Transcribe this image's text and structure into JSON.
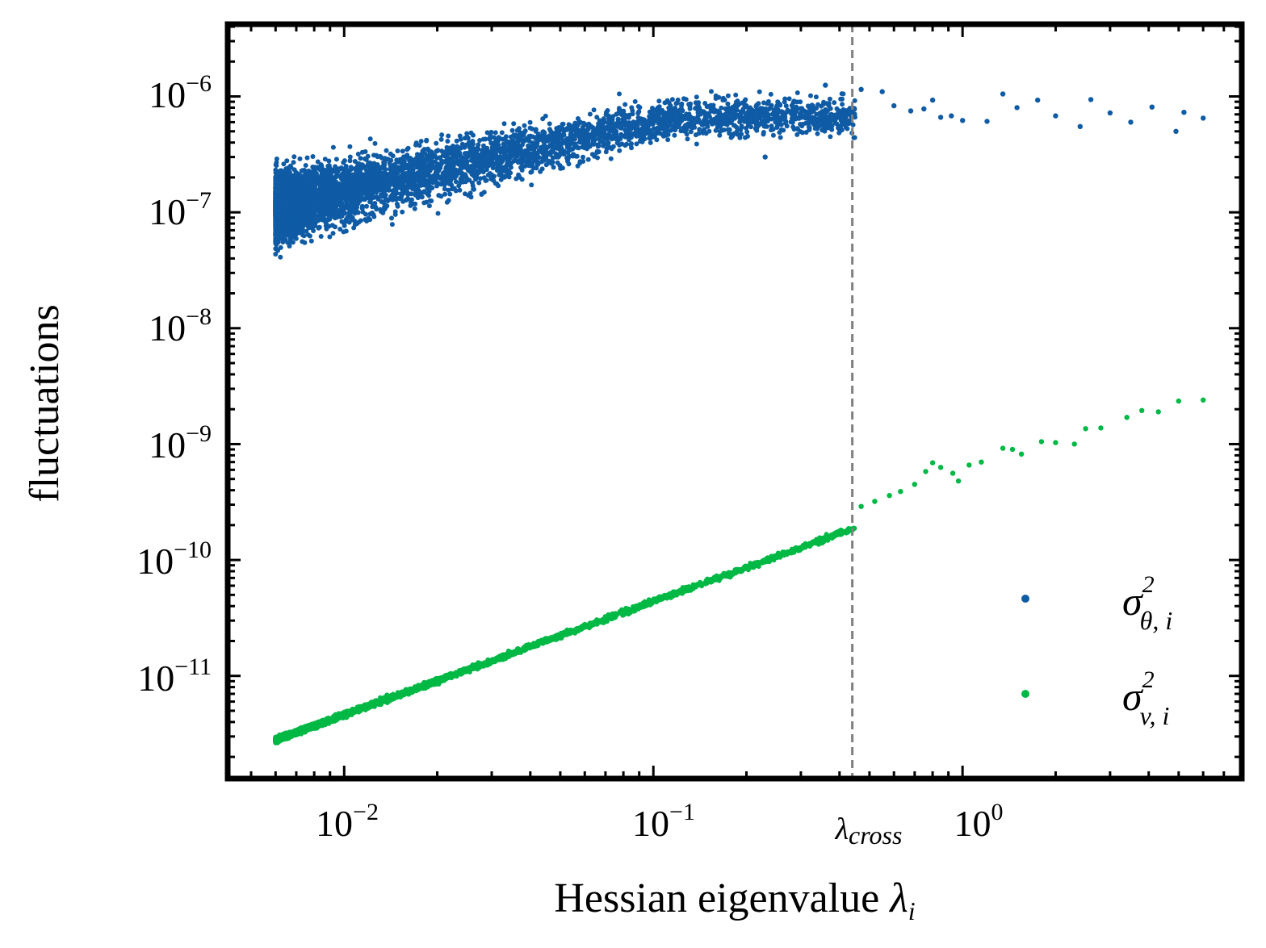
{
  "chart_data": {
    "type": "scatter",
    "title": "",
    "xlabel": "Hessian eigenvalue",
    "xlabel_symbol": "λ",
    "xlabel_subscript": "i",
    "ylabel": "fluctuations",
    "xscale": "log",
    "yscale": "log",
    "xlim": [
      0.0042,
      8.0
    ],
    "ylim": [
      1.3e-12,
      4.2e-06
    ],
    "x_ticks": [
      {
        "value": 0.01,
        "base": "10",
        "exp": "−2"
      },
      {
        "value": 0.1,
        "base": "10",
        "exp": "−1"
      },
      {
        "value": 1.0,
        "base": "10",
        "exp": "0"
      }
    ],
    "y_ticks": [
      {
        "value": 1e-11,
        "base": "10",
        "exp": "−11"
      },
      {
        "value": 1e-10,
        "base": "10",
        "exp": "−10"
      },
      {
        "value": 1e-09,
        "base": "10",
        "exp": "−9"
      },
      {
        "value": 1e-08,
        "base": "10",
        "exp": "−8"
      },
      {
        "value": 1e-07,
        "base": "10",
        "exp": "−7"
      },
      {
        "value": 1e-06,
        "base": "10",
        "exp": "−6"
      }
    ],
    "vline": {
      "x": 0.44,
      "label": "λ",
      "label_subscript": "cross",
      "color": "#808080",
      "style": "dashed"
    },
    "legend": {
      "position": "lower right"
    },
    "series": [
      {
        "name": "σ²θ,i",
        "symbol": "σ",
        "sup": "2",
        "sub": "θ, i",
        "color": "#0f5ba5",
        "x_range": [
          0.006,
          6.0
        ],
        "y_start": 1e-07,
        "y_plateau": 6e-07,
        "description": "dense cloud near 1e-7 at low eigenvalues rising to a plateau near 6e-7",
        "points": [
          [
            1.35,
            1.05e-06
          ],
          [
            1.5,
            8e-07
          ],
          [
            1.75,
            9.3e-07
          ],
          [
            2.0,
            6.8e-07
          ],
          [
            2.4,
            5.5e-07
          ],
          [
            2.6,
            9.4e-07
          ],
          [
            3.0,
            7.2e-07
          ],
          [
            3.5,
            6e-07
          ],
          [
            4.1,
            8.1e-07
          ],
          [
            4.9,
            5e-07
          ],
          [
            5.2,
            7.3e-07
          ],
          [
            6.0,
            6.5e-07
          ],
          [
            1.0,
            6.2e-07
          ],
          [
            0.92,
            6.8e-07
          ],
          [
            0.85,
            6.6e-07
          ],
          [
            1.2,
            6.1e-07
          ],
          [
            0.75,
            7.8e-07
          ],
          [
            0.8,
            9.3e-07
          ],
          [
            0.68,
            7.5e-07
          ],
          [
            0.55,
            1.1e-06
          ],
          [
            0.6,
            8.3e-07
          ],
          [
            0.47,
            1.15e-06
          ],
          [
            0.36,
            1.25e-06
          ],
          [
            0.23,
            3e-07
          ]
        ]
      },
      {
        "name": "σ²v,i",
        "symbol": "σ",
        "sup": "2",
        "sub": "v, i",
        "color": "#00b844",
        "x_range": [
          0.006,
          6.0
        ],
        "y_at_x_min": 2.8e-12,
        "y_at_x_max": 2.4e-09,
        "description": "tight linear trend on log-log axes",
        "points": [
          [
            0.47,
            2.9e-10
          ],
          [
            0.52,
            3.2e-10
          ],
          [
            0.58,
            3.6e-10
          ],
          [
            0.63,
            3.9e-10
          ],
          [
            0.7,
            4.5e-10
          ],
          [
            0.76,
            5.8e-10
          ],
          [
            0.8,
            6.9e-10
          ],
          [
            0.85,
            6.3e-10
          ],
          [
            0.93,
            5.6e-10
          ],
          [
            0.97,
            4.8e-10
          ],
          [
            1.05,
            6.6e-10
          ],
          [
            1.15,
            7e-10
          ],
          [
            1.35,
            9.2e-10
          ],
          [
            1.45,
            9e-10
          ],
          [
            1.55,
            8.2e-10
          ],
          [
            1.8,
            1.05e-09
          ],
          [
            2.0,
            1.03e-09
          ],
          [
            2.3,
            1e-09
          ],
          [
            2.5,
            1.36e-09
          ],
          [
            2.8,
            1.38e-09
          ],
          [
            3.4,
            1.7e-09
          ],
          [
            3.8,
            1.95e-09
          ],
          [
            4.3,
            1.9e-09
          ],
          [
            5.0,
            2.35e-09
          ],
          [
            6.0,
            2.4e-09
          ]
        ]
      }
    ]
  }
}
